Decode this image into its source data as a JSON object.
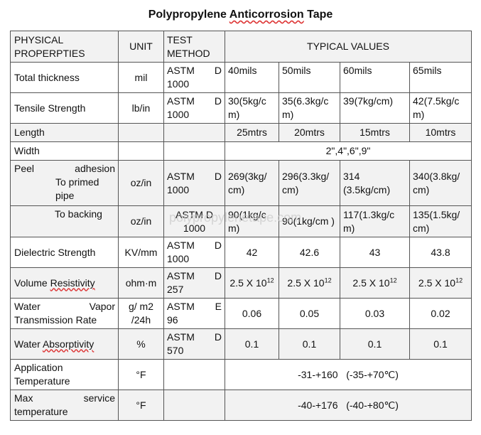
{
  "title": {
    "pre": "Polypropylene ",
    "wavy": "Anticorrosion",
    "post": " Tape"
  },
  "header": {
    "property": "PHYSICAL PROPERPTIES",
    "unit": "UNIT",
    "method": "TEST METHOD",
    "values": "TYPICAL VALUES"
  },
  "rows": {
    "thickness": {
      "label": "Total thickness",
      "unit": "mil",
      "m1": "ASTM",
      "m2": "D",
      "m3": "1000",
      "v": [
        "40mils",
        "50mils",
        "60mils",
        "65mils"
      ]
    },
    "tensile": {
      "label": "Tensile Strength",
      "unit": "lb/in",
      "m1": "ASTM",
      "m2": "D",
      "m3": "1000",
      "v": [
        "30(5kg/c m)",
        "35(6.3kg/c m)",
        "39(7kg/cm)",
        "42(7.5kg/c m)"
      ]
    },
    "length": {
      "label": "Length",
      "v": [
        "25mtrs",
        "20mtrs",
        "15mtrs",
        "10mtrs"
      ]
    },
    "width": {
      "label": "Width",
      "v": "2\",4\",6\",9\""
    },
    "peel_primed": {
      "label_a": "Peel",
      "label_b": "adhesion",
      "label_c": "To primed pipe",
      "unit": "oz/in",
      "m1": "ASTM",
      "m2": "D",
      "m3": "1000",
      "v": [
        "269(3kg/ cm)",
        "296(3.3kg/ cm)",
        "314 (3.5kg/cm)",
        "340(3.8kg/ cm)"
      ]
    },
    "peel_backing": {
      "label": "To backing",
      "unit": "oz/in",
      "m1": "ASTM",
      "m2": "D",
      "m3": "1000",
      "v": [
        "90(1kg/c m)",
        "90(1kg/cm )",
        "117(1.3kg/c m)",
        "135(1.5kg/ cm)"
      ]
    },
    "dielectric": {
      "label": "Dielectric Strength",
      "unit": "KV/mm",
      "m1": "ASTM",
      "m2": "D",
      "m3": "1000",
      "v": [
        "42",
        "42.6",
        "43",
        "43.8"
      ]
    },
    "volume": {
      "label_pre": "Volume ",
      "label_wavy": "Resistivity",
      "unit": "ohm·m",
      "m1": "ASTM",
      "m2": "D",
      "m3": "257",
      "base": "2.5 X 10",
      "exp": "12"
    },
    "wvtr": {
      "label_a": "Water",
      "label_b": "Vapor",
      "label_c": "Transmission Rate",
      "unit": "g/ m2 /24h",
      "m1": "ASTM",
      "m2": "E",
      "m3": "96",
      "v": [
        "0.06",
        "0.05",
        "0.03",
        "0.02"
      ]
    },
    "absorb": {
      "label_pre": "Water ",
      "label_wavy": "Absorptivity",
      "unit": "%",
      "m1": "ASTM",
      "m2": "D",
      "m3": "570",
      "v": [
        "0.1",
        "0.1",
        "0.1",
        "0.1"
      ]
    },
    "app_temp": {
      "label": "Application Temperature",
      "unit": "°F",
      "v": "-31-+160   (-35-+70℃)"
    },
    "max_temp": {
      "label_a": "Max",
      "label_b": "service",
      "label_c": "temperature",
      "unit": "°F",
      "v": "-40-+176   (-40-+80℃)"
    }
  },
  "watermark": "polypropylenetape.com"
}
